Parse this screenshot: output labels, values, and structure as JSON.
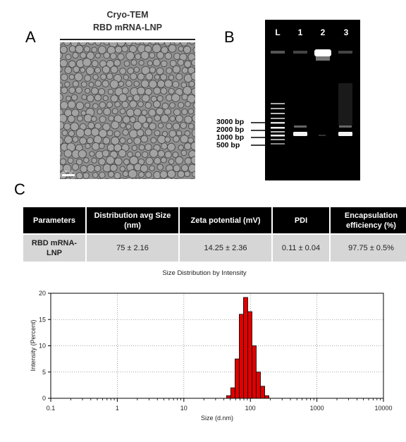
{
  "panels": {
    "a": "A",
    "b": "B",
    "c": "C"
  },
  "panel_a": {
    "title_line1": "Cryo-TEM",
    "title_line2": "RBD mRNA-LNP",
    "scale_bar": "100 nm"
  },
  "panel_b": {
    "lanes": [
      "L",
      "1",
      "2",
      "3"
    ],
    "marker_labels": [
      "3000 bp",
      "2000 bp",
      "1000 bp",
      "500 bp"
    ]
  },
  "table": {
    "headers": [
      "Parameters",
      "Distribution avg Size (nm)",
      "Zeta potential (mV)",
      "PDI",
      "Encapsulation efficiency (%)"
    ],
    "rows": [
      [
        "RBD mRNA-LNP",
        "75 ± 2.16",
        "14.25 ± 2.36",
        "0.11 ± 0.04",
        "97.75 ± 0.5%"
      ]
    ]
  },
  "chart_data": {
    "type": "bar",
    "title": "Size Distribution by Intensity",
    "xlabel": "Size (d.nm)",
    "ylabel": "Intensity (Percent)",
    "xscale": "log",
    "xlim": [
      0.1,
      10000
    ],
    "ylim": [
      0,
      20
    ],
    "xticks": [
      "0.1",
      "1",
      "10",
      "100",
      "1000",
      "10000"
    ],
    "yticks": [
      "0",
      "5",
      "10",
      "15",
      "20"
    ],
    "grid": true,
    "bar_color": "#e00000",
    "bins": [
      {
        "x0": 43.8,
        "x1": 50.7,
        "value": 0.5
      },
      {
        "x0": 50.7,
        "x1": 58.8,
        "value": 2.0
      },
      {
        "x0": 58.8,
        "x1": 68.1,
        "value": 7.5
      },
      {
        "x0": 68.1,
        "x1": 78.8,
        "value": 16.0
      },
      {
        "x0": 78.8,
        "x1": 91.3,
        "value": 19.2
      },
      {
        "x0": 91.3,
        "x1": 105.7,
        "value": 16.5
      },
      {
        "x0": 105.7,
        "x1": 122.4,
        "value": 10.0
      },
      {
        "x0": 122.4,
        "x1": 141.8,
        "value": 5.0
      },
      {
        "x0": 141.8,
        "x1": 164.2,
        "value": 2.3
      },
      {
        "x0": 164.2,
        "x1": 190.1,
        "value": 0.5
      }
    ]
  }
}
